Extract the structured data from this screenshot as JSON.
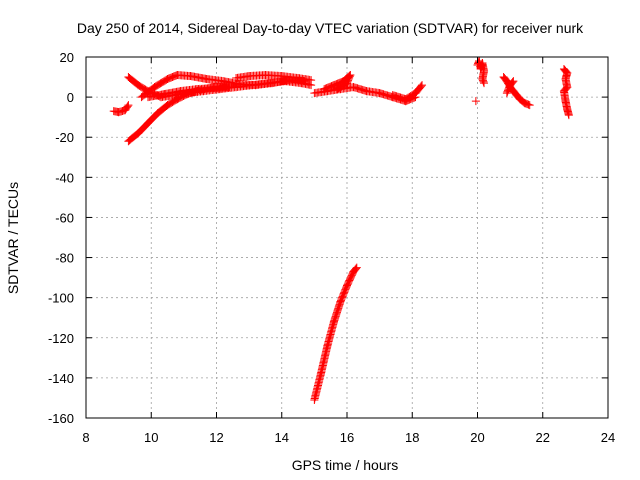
{
  "chart_data": {
    "type": "scatter",
    "title": "Day 250 of 2014, Sidereal Day-to-day VTEC variation (SDTVAR) for receiver nurk",
    "xlabel": "GPS time / hours",
    "ylabel": "SDTVAR / TECUs",
    "xlim": [
      8,
      24
    ],
    "ylim": [
      -160,
      20
    ],
    "xticks": [
      8,
      10,
      12,
      14,
      16,
      18,
      20,
      22,
      24
    ],
    "yticks": [
      -160,
      -140,
      -120,
      -100,
      -80,
      -60,
      -40,
      -20,
      0,
      20
    ],
    "grid": true,
    "marker": "+",
    "color": "#ff0000",
    "series": [
      {
        "name": "SDTVAR",
        "segments": [
          [
            [
              8.85,
              -7
            ],
            [
              9.0,
              -7.5
            ],
            [
              9.2,
              -6.5
            ],
            [
              9.3,
              -4
            ]
          ],
          [
            [
              9.3,
              -22
            ],
            [
              9.6,
              -18
            ],
            [
              9.9,
              -13
            ],
            [
              10.2,
              -8
            ],
            [
              10.5,
              -4
            ],
            [
              10.8,
              -1
            ],
            [
              11.1,
              1.5
            ],
            [
              11.5,
              3.5
            ],
            [
              11.9,
              5
            ],
            [
              12.3,
              5.5
            ]
          ],
          [
            [
              9.3,
              10
            ],
            [
              9.6,
              6
            ],
            [
              9.9,
              3
            ],
            [
              10.3,
              0
            ],
            [
              10.7,
              1
            ],
            [
              11.1,
              2
            ],
            [
              11.6,
              3
            ],
            [
              12.1,
              4
            ],
            [
              12.6,
              5
            ],
            [
              13.1,
              6
            ],
            [
              13.6,
              7
            ],
            [
              14.1,
              8
            ],
            [
              14.6,
              7
            ],
            [
              14.9,
              6
            ]
          ],
          [
            [
              9.7,
              0
            ],
            [
              10.1,
              5
            ],
            [
              10.5,
              9
            ],
            [
              10.8,
              11
            ],
            [
              11.2,
              10.5
            ],
            [
              11.7,
              9
            ],
            [
              12.2,
              8
            ],
            [
              12.7,
              6.5
            ],
            [
              13.2,
              6
            ],
            [
              13.7,
              7
            ],
            [
              14.2,
              8.5
            ],
            [
              14.7,
              8
            ]
          ],
          [
            [
              9.9,
              0
            ],
            [
              10.4,
              1.5
            ],
            [
              10.9,
              3
            ],
            [
              11.4,
              4
            ],
            [
              11.9,
              4.5
            ],
            [
              12.4,
              5
            ]
          ],
          [
            [
              12.6,
              9.5
            ],
            [
              13.0,
              10.5
            ],
            [
              13.5,
              11
            ],
            [
              14.0,
              10.5
            ],
            [
              14.5,
              9.5
            ],
            [
              14.9,
              8.5
            ]
          ],
          [
            [
              15.0,
              2
            ],
            [
              15.4,
              3
            ],
            [
              15.8,
              4
            ],
            [
              16.2,
              5
            ],
            [
              16.6,
              3
            ],
            [
              17.0,
              2
            ],
            [
              17.4,
              0
            ],
            [
              17.8,
              -2
            ],
            [
              18.1,
              0
            ]
          ],
          [
            [
              15.3,
              4
            ],
            [
              15.6,
              6
            ],
            [
              15.9,
              8
            ],
            [
              16.1,
              11
            ],
            [
              16.0,
              7
            ],
            [
              15.7,
              4
            ]
          ],
          [
            [
              17.4,
              1
            ],
            [
              17.8,
              -1
            ],
            [
              18.1,
              2
            ],
            [
              18.3,
              6
            ]
          ],
          [
            [
              15.0,
              -151
            ],
            [
              15.2,
              -138
            ],
            [
              15.4,
              -124
            ],
            [
              15.6,
              -112
            ],
            [
              15.8,
              -102
            ],
            [
              16.0,
              -94
            ],
            [
              16.2,
              -87
            ],
            [
              16.3,
              -85
            ]
          ],
          [
            [
              20.0,
              16
            ],
            [
              20.05,
              18
            ],
            [
              20.1,
              14
            ],
            [
              20.15,
              17
            ],
            [
              20.2,
              13
            ],
            [
              20.15,
              9
            ],
            [
              20.2,
              7
            ]
          ],
          [
            [
              19.95,
              -2
            ]
          ],
          [
            [
              20.8,
              10
            ],
            [
              20.9,
              8
            ],
            [
              21.0,
              5
            ],
            [
              21.1,
              3
            ],
            [
              21.2,
              1
            ],
            [
              21.3,
              -1
            ],
            [
              21.45,
              -3
            ],
            [
              21.6,
              -4
            ]
          ],
          [
            [
              20.9,
              2
            ],
            [
              21.0,
              6
            ],
            [
              21.1,
              8
            ]
          ],
          [
            [
              22.65,
              14
            ],
            [
              22.75,
              12
            ],
            [
              22.7,
              9
            ],
            [
              22.75,
              5
            ],
            [
              22.65,
              3
            ],
            [
              22.7,
              -2
            ],
            [
              22.75,
              -6
            ],
            [
              22.8,
              -9
            ]
          ]
        ]
      }
    ]
  }
}
